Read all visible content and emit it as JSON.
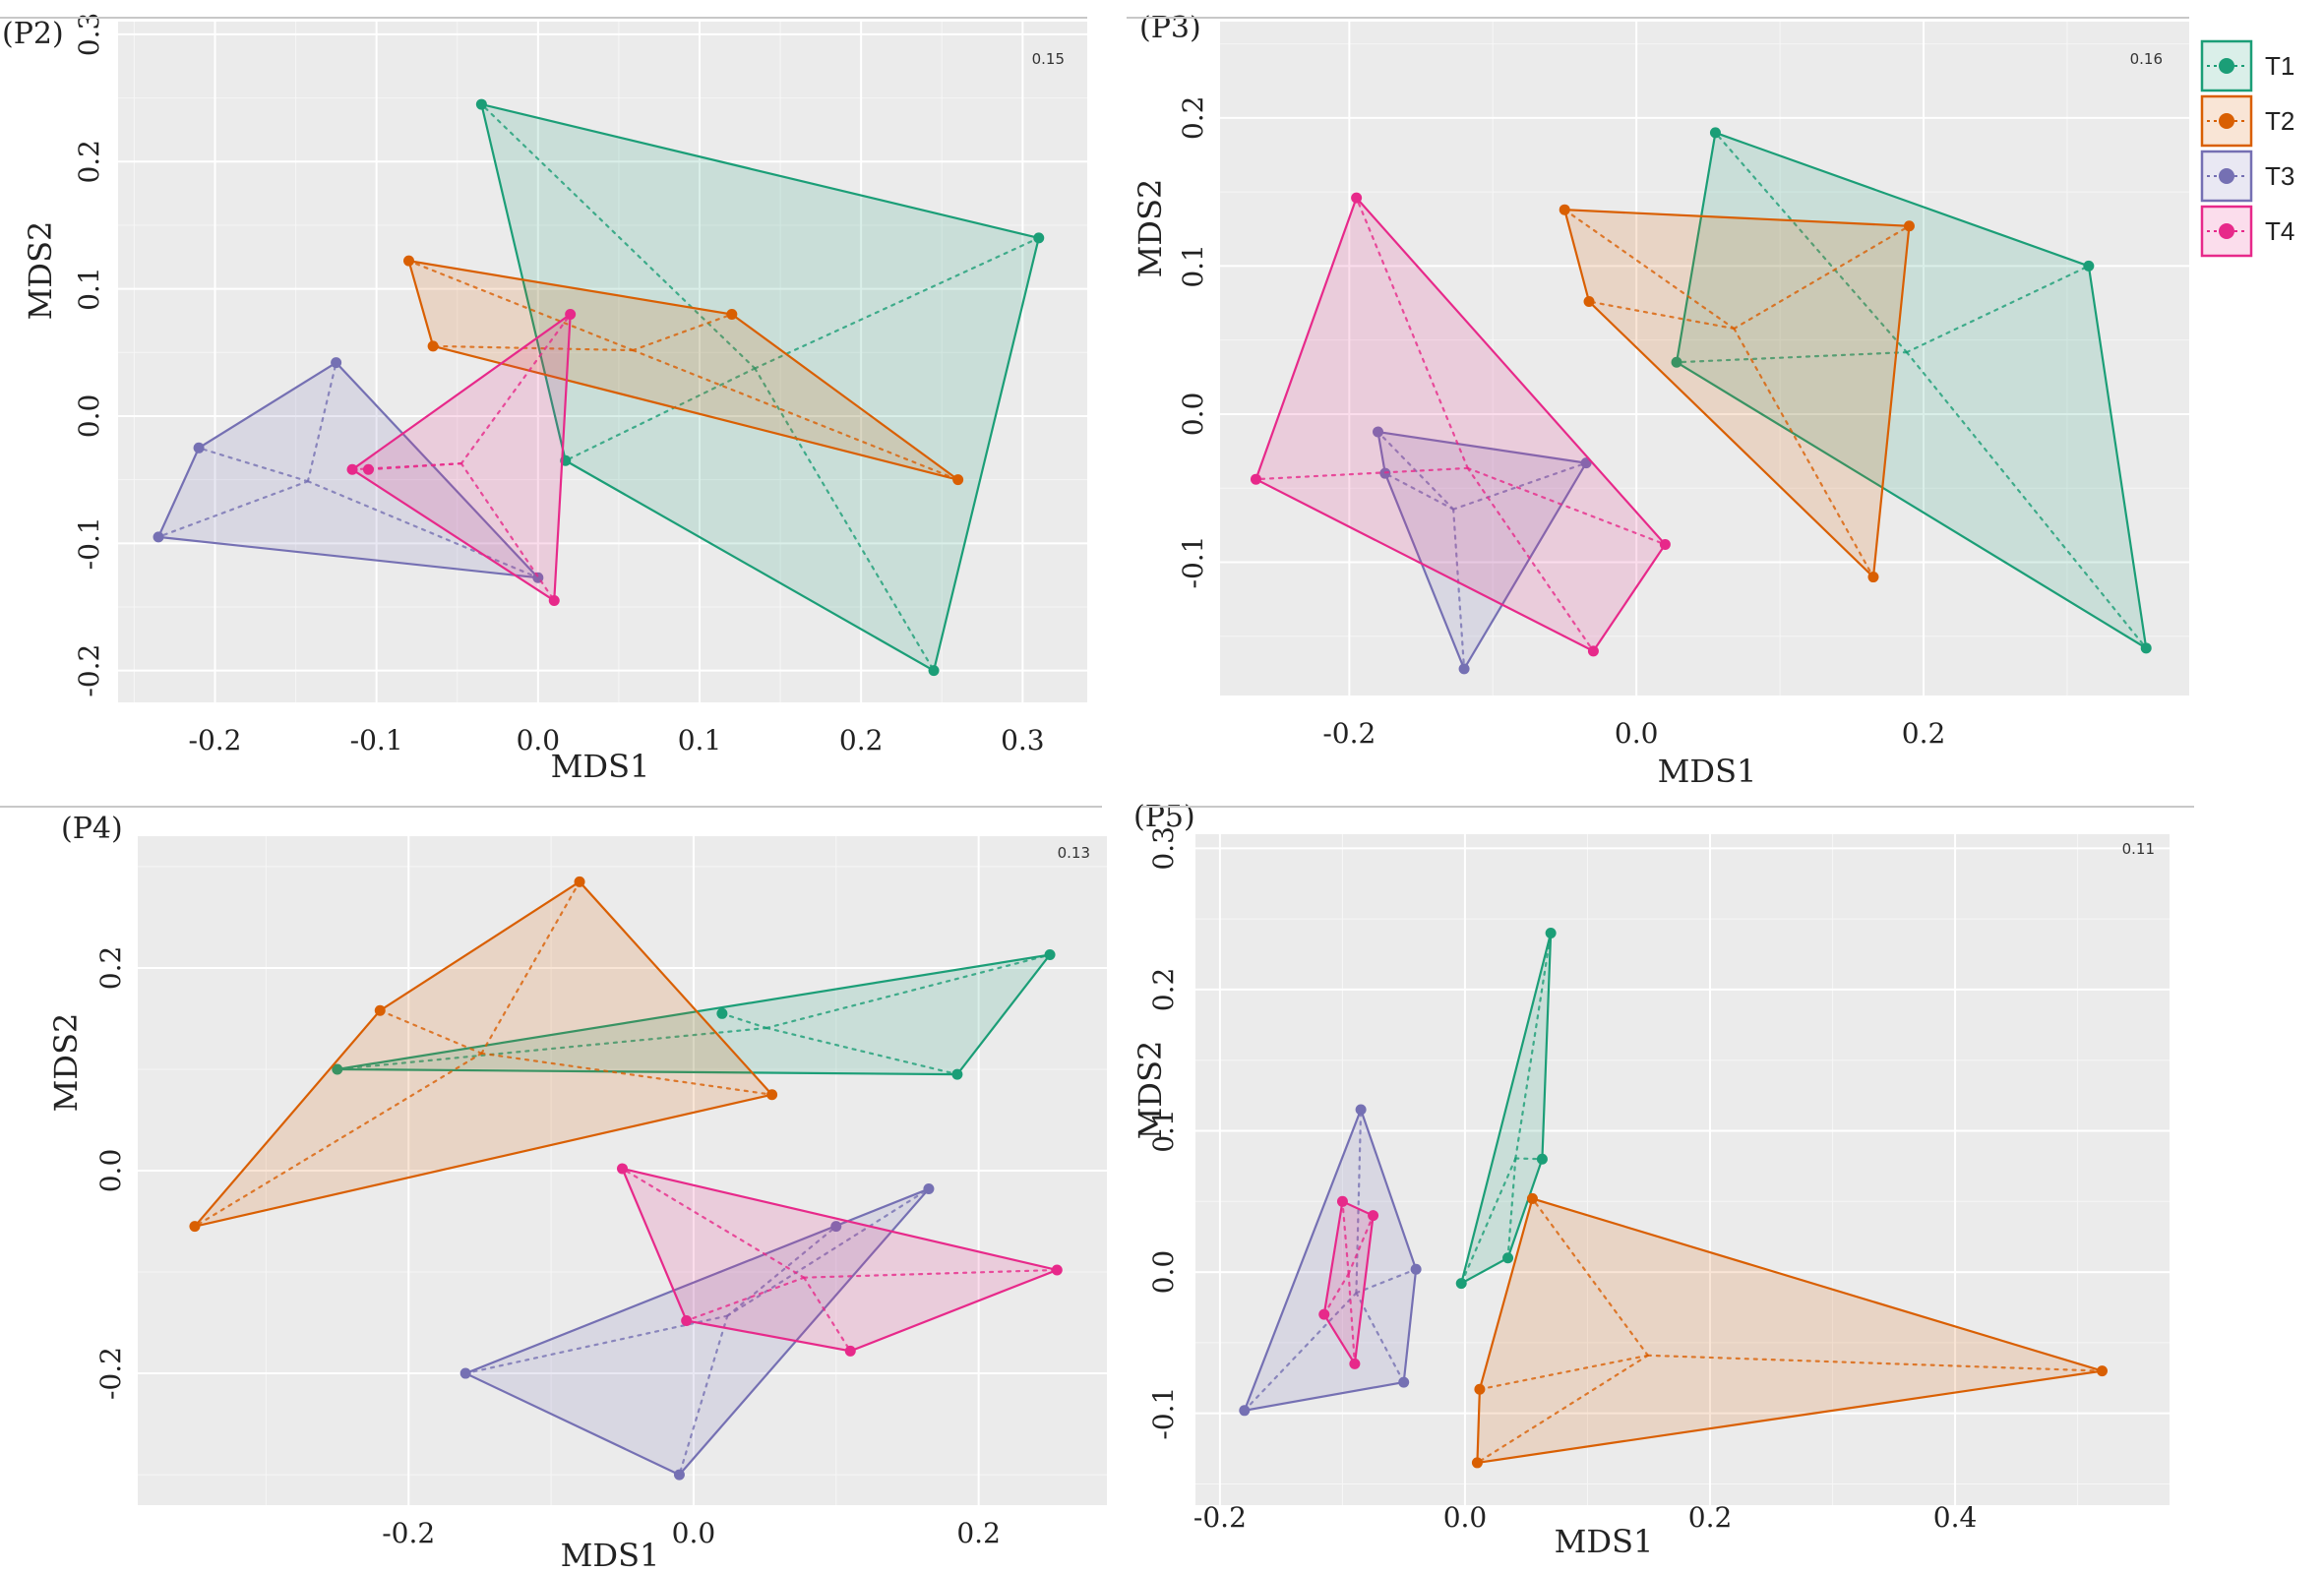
{
  "colors": {
    "T1": "#1b9e77",
    "T2": "#d95f02",
    "T3": "#7570b3",
    "T4": "#e7298a"
  },
  "legend": [
    {
      "name": "T1",
      "color": "#1b9e77"
    },
    {
      "name": "T2",
      "color": "#d95f02"
    },
    {
      "name": "T3",
      "color": "#7570b3"
    },
    {
      "name": "T4",
      "color": "#e7298a"
    }
  ],
  "chart_data": [
    {
      "id": "P2",
      "type": "scatter",
      "title": "(P2)",
      "stress": "0.15",
      "xlabel": "MDS1",
      "ylabel": "MDS2",
      "xlim": [
        -0.26,
        0.34
      ],
      "ylim": [
        -0.225,
        0.31
      ],
      "xticks": [
        -0.2,
        -0.1,
        0.0,
        0.1,
        0.2,
        0.3
      ],
      "xtick_labels": [
        "-0.2",
        "-0.1",
        "0.0",
        "0.1",
        "0.2",
        "0.3"
      ],
      "yticks": [
        -0.2,
        -0.1,
        0.0,
        0.1,
        0.2,
        0.3
      ],
      "ytick_labels": [
        "-0.2",
        "-0.1",
        "0.0",
        "0.1",
        "0.2",
        "0.3"
      ],
      "series": [
        {
          "name": "T1",
          "points": [
            [
              -0.035,
              0.245
            ],
            [
              0.31,
              0.14
            ],
            [
              0.245,
              -0.2
            ],
            [
              0.017,
              -0.035
            ]
          ]
        },
        {
          "name": "T2",
          "points": [
            [
              -0.08,
              0.122
            ],
            [
              -0.065,
              0.055
            ],
            [
              0.12,
              0.08
            ],
            [
              0.26,
              -0.05
            ]
          ]
        },
        {
          "name": "T3",
          "points": [
            [
              -0.125,
              0.042
            ],
            [
              -0.21,
              -0.025
            ],
            [
              -0.235,
              -0.095
            ],
            [
              0.0,
              -0.127
            ]
          ]
        },
        {
          "name": "T4",
          "points": [
            [
              0.02,
              0.08
            ],
            [
              -0.115,
              -0.042
            ],
            [
              -0.105,
              -0.042
            ],
            [
              0.01,
              -0.145
            ]
          ]
        }
      ]
    },
    {
      "id": "P3",
      "type": "scatter",
      "title": "(P3)",
      "stress": "0.16",
      "xlabel": "MDS1",
      "ylabel": "MDS2",
      "xlim": [
        -0.29,
        0.385
      ],
      "ylim": [
        -0.19,
        0.265
      ],
      "xticks": [
        -0.2,
        0.0,
        0.2
      ],
      "xtick_labels": [
        "-0.2",
        "0.0",
        "0.2"
      ],
      "yticks": [
        -0.1,
        0.0,
        0.1,
        0.2
      ],
      "ytick_labels": [
        "-0.1",
        "0.0",
        "0.1",
        "0.2"
      ],
      "series": [
        {
          "name": "T1",
          "points": [
            [
              0.055,
              0.19
            ],
            [
              0.315,
              0.1
            ],
            [
              0.355,
              -0.158
            ],
            [
              0.028,
              0.035
            ]
          ]
        },
        {
          "name": "T2",
          "points": [
            [
              -0.05,
              0.138
            ],
            [
              0.19,
              0.127
            ],
            [
              0.165,
              -0.11
            ],
            [
              -0.033,
              0.076
            ]
          ]
        },
        {
          "name": "T3",
          "points": [
            [
              -0.18,
              -0.012
            ],
            [
              -0.035,
              -0.033
            ],
            [
              -0.12,
              -0.172
            ],
            [
              -0.175,
              -0.04
            ]
          ]
        },
        {
          "name": "T4",
          "points": [
            [
              -0.195,
              0.146
            ],
            [
              -0.265,
              -0.044
            ],
            [
              -0.03,
              -0.16
            ],
            [
              0.02,
              -0.088
            ]
          ]
        }
      ]
    },
    {
      "id": "P4",
      "type": "scatter",
      "title": "(P4)",
      "stress": "0.13",
      "xlabel": "MDS1",
      "ylabel": "MDS2",
      "xlim": [
        -0.39,
        0.29
      ],
      "ylim": [
        -0.33,
        0.33
      ],
      "xticks": [
        -0.2,
        0.0,
        0.2
      ],
      "xtick_labels": [
        "-0.2",
        "0.0",
        "0.2"
      ],
      "yticks": [
        -0.2,
        0.0,
        0.2
      ],
      "ytick_labels": [
        "-0.2",
        "0.0",
        "0.2"
      ],
      "series": [
        {
          "name": "T1",
          "points": [
            [
              -0.25,
              0.1
            ],
            [
              0.02,
              0.155
            ],
            [
              0.25,
              0.213
            ],
            [
              0.185,
              0.095
            ]
          ]
        },
        {
          "name": "T2",
          "points": [
            [
              -0.08,
              0.285
            ],
            [
              -0.22,
              0.158
            ],
            [
              -0.35,
              -0.055
            ],
            [
              0.055,
              0.075
            ]
          ]
        },
        {
          "name": "T3",
          "points": [
            [
              0.165,
              -0.018
            ],
            [
              0.1,
              -0.055
            ],
            [
              -0.16,
              -0.2
            ],
            [
              -0.01,
              -0.3
            ]
          ]
        },
        {
          "name": "T4",
          "points": [
            [
              -0.05,
              0.002
            ],
            [
              0.255,
              -0.098
            ],
            [
              0.11,
              -0.178
            ],
            [
              -0.005,
              -0.148
            ]
          ]
        }
      ]
    },
    {
      "id": "P5",
      "type": "scatter",
      "title": "(P5)",
      "stress": "0.11",
      "xlabel": "MDS1",
      "ylabel": "MDS2",
      "xlim": [
        -0.22,
        0.575
      ],
      "ylim": [
        -0.165,
        0.31
      ],
      "xticks": [
        -0.2,
        0.0,
        0.2,
        0.4
      ],
      "xtick_labels": [
        "-0.2",
        "0.0",
        "0.2",
        "0.4"
      ],
      "yticks": [
        -0.1,
        0.0,
        0.1,
        0.2,
        0.3
      ],
      "ytick_labels": [
        "-0.1",
        "0.0",
        "0.1",
        "0.2",
        "0.3"
      ],
      "series": [
        {
          "name": "T1",
          "points": [
            [
              0.07,
              0.24
            ],
            [
              0.063,
              0.08
            ],
            [
              0.035,
              0.01
            ],
            [
              -0.003,
              -0.008
            ]
          ]
        },
        {
          "name": "T2",
          "points": [
            [
              0.055,
              0.052
            ],
            [
              0.52,
              -0.07
            ],
            [
              0.01,
              -0.135
            ],
            [
              0.012,
              -0.083
            ]
          ]
        },
        {
          "name": "T3",
          "points": [
            [
              -0.085,
              0.115
            ],
            [
              -0.04,
              0.002
            ],
            [
              -0.05,
              -0.078
            ],
            [
              -0.18,
              -0.098
            ]
          ]
        },
        {
          "name": "T4",
          "points": [
            [
              -0.1,
              0.05
            ],
            [
              -0.075,
              0.04
            ],
            [
              -0.09,
              -0.065
            ],
            [
              -0.115,
              -0.03
            ]
          ]
        }
      ]
    }
  ]
}
